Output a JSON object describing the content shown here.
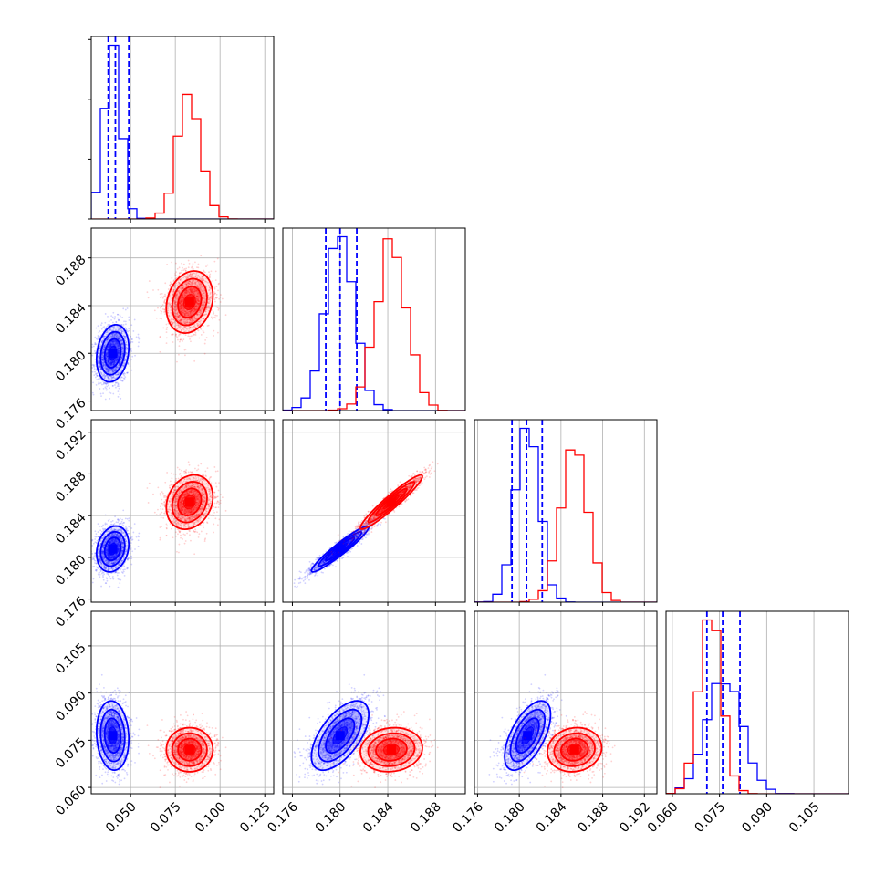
{
  "chart_data": {
    "type": "corner",
    "title": "",
    "colors": {
      "blue": "#0000ff",
      "red": "#ff0000",
      "grid": "#b0b0b0"
    },
    "params": [
      {
        "range": [
          0.028,
          0.13
        ],
        "ticks": [
          "0.050",
          "0.075",
          "0.100",
          "0.125"
        ],
        "tick_values": [
          0.05,
          0.075,
          0.1,
          0.125
        ]
      },
      {
        "range": [
          0.1752,
          0.1905
        ],
        "ticks": [
          "0.176",
          "0.180",
          "0.184",
          "0.188"
        ],
        "tick_values": [
          0.176,
          0.18,
          0.184,
          0.188
        ]
      },
      {
        "range": [
          0.1757,
          0.1932
        ],
        "ticks": [
          "0.176",
          "0.180",
          "0.184",
          "0.188",
          "0.192"
        ],
        "tick_values": [
          0.176,
          0.18,
          0.184,
          0.188,
          0.192
        ]
      },
      {
        "range": [
          0.058,
          0.116
        ],
        "ticks": [
          "0.060",
          "0.075",
          "0.090",
          "0.105"
        ],
        "tick_values": [
          0.06,
          0.075,
          0.09,
          0.105
        ]
      }
    ],
    "series": [
      {
        "color": "#0000ff",
        "mean": [
          0.04,
          0.18,
          0.1808,
          0.0765
        ],
        "sd": [
          0.0045,
          0.0012,
          0.0011,
          0.0055
        ],
        "corr": {
          "0-1": 0.2,
          "0-2": 0.2,
          "0-3": -0.1,
          "1-2": 0.95,
          "1-3": 0.6,
          "2-3": 0.6
        },
        "quantiles": [
          [
            0.0375,
            0.0415,
            0.049
          ],
          [
            0.1788,
            0.18,
            0.1814
          ],
          [
            0.1793,
            0.1807,
            0.1822
          ],
          [
            0.071,
            0.076,
            0.0815
          ]
        ]
      },
      {
        "color": "#ff0000",
        "mean": [
          0.083,
          0.1843,
          0.1853,
          0.072
        ],
        "sd": [
          0.0065,
          0.0013,
          0.0013,
          0.0035
        ],
        "corr": {
          "0-1": 0.2,
          "0-2": 0.2,
          "0-3": 0.0,
          "1-2": 0.95,
          "1-3": 0.1,
          "2-3": 0.1
        },
        "quantiles": [
          [],
          [],
          [],
          []
        ]
      }
    ],
    "legend": []
  }
}
